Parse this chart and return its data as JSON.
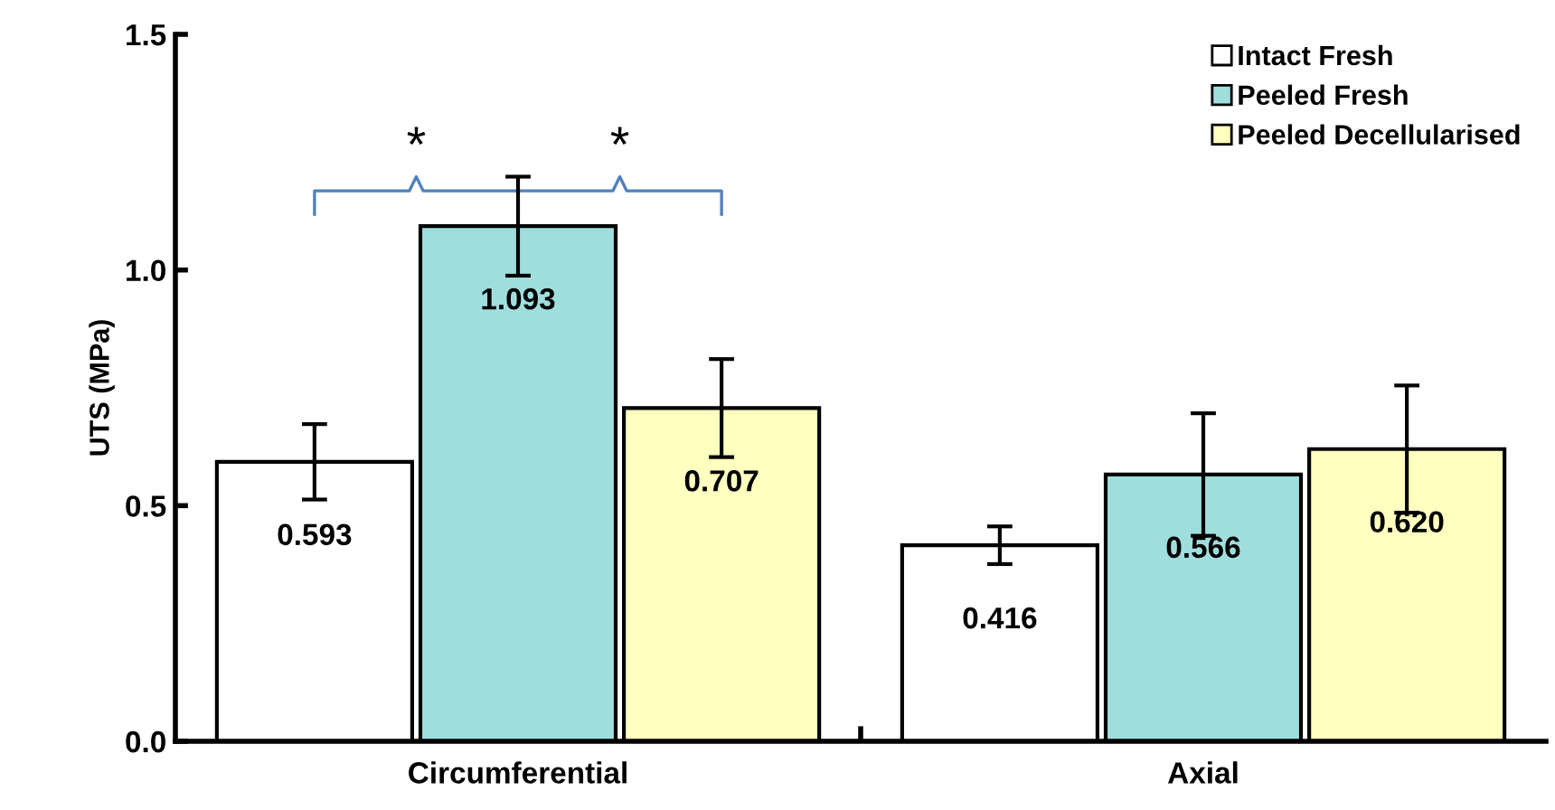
{
  "chart_data": {
    "type": "bar",
    "ylabel": "UTS (MPa)",
    "categories": [
      "Circumferential",
      "Axial"
    ],
    "series": [
      {
        "name": "Intact Fresh",
        "color": "#ffffff",
        "values": [
          0.593,
          0.416
        ],
        "errors": [
          0.08,
          0.04
        ],
        "value_labels": [
          "0.593",
          "0.416"
        ]
      },
      {
        "name": "Peeled Fresh",
        "color": "#a0dede",
        "values": [
          1.093,
          0.566
        ],
        "errors": [
          0.105,
          0.13
        ],
        "value_labels": [
          "1.093",
          "0.566"
        ]
      },
      {
        "name": "Peeled Decellularised",
        "color": "#ffffc0",
        "values": [
          0.707,
          0.62
        ],
        "errors": [
          0.104,
          0.135
        ],
        "value_labels": [
          "0.707",
          "0.620"
        ]
      }
    ],
    "ylim": [
      0,
      1.5
    ],
    "yticks": [
      {
        "value": 0,
        "label": "0.0"
      },
      {
        "value": 0.5,
        "label": "0.5"
      },
      {
        "value": 1.0,
        "label": "1.0"
      },
      {
        "value": 1.5,
        "label": "1.5"
      }
    ],
    "annotations": [
      "*",
      "*"
    ],
    "legend": "top right",
    "grid": false
  }
}
